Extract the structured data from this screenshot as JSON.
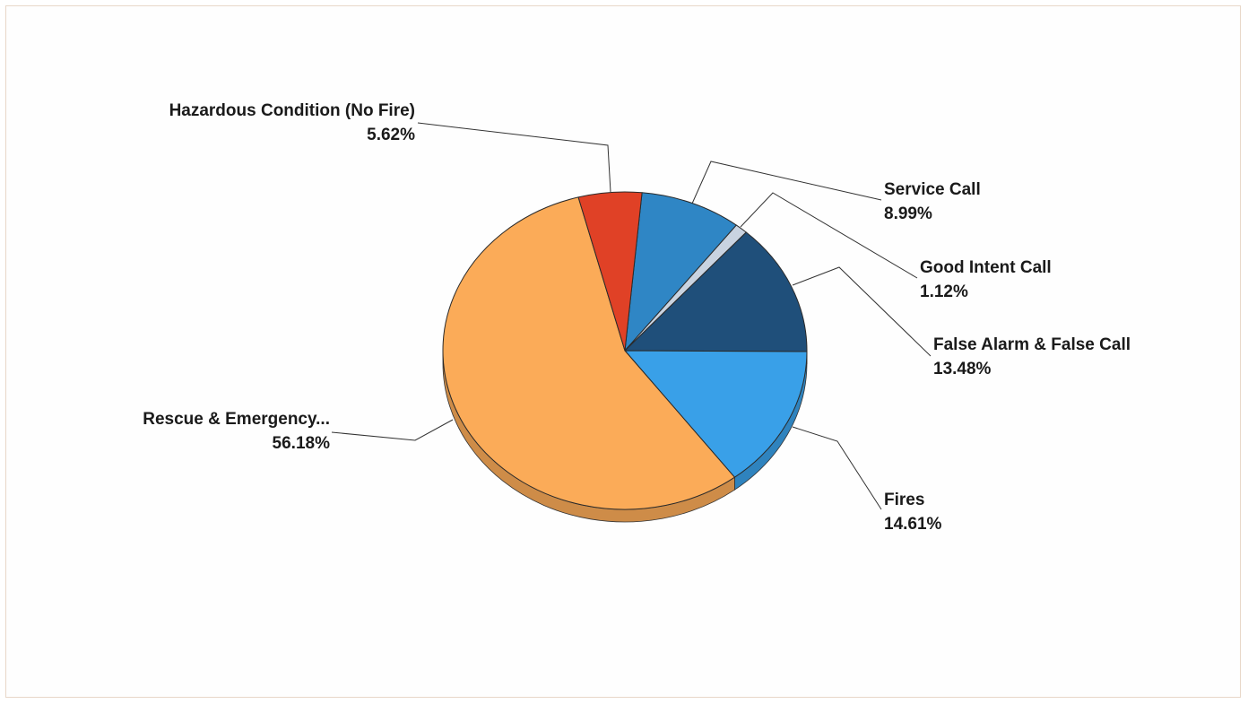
{
  "chart_data": {
    "type": "pie",
    "title": "",
    "legend": "none",
    "style": "3d",
    "slices": [
      {
        "label": "Service Call",
        "pct_label": "8.99%",
        "value": 8.99,
        "color": "#2f86c5"
      },
      {
        "label": "Good Intent Call",
        "pct_label": "1.12%",
        "value": 1.12,
        "color": "#c9d3e0"
      },
      {
        "label": "False Alarm & False Call",
        "pct_label": "13.48%",
        "value": 13.48,
        "color": "#1f4f7a"
      },
      {
        "label": "Fires",
        "pct_label": "14.61%",
        "value": 14.61,
        "color": "#39a0e8"
      },
      {
        "label": "Rescue & Emergency...",
        "pct_label": "56.18%",
        "value": 56.18,
        "color": "#fbab58"
      },
      {
        "label": "Hazardous Condition (No Fire)",
        "pct_label": "5.62%",
        "value": 5.62,
        "color": "#e04126"
      }
    ]
  }
}
